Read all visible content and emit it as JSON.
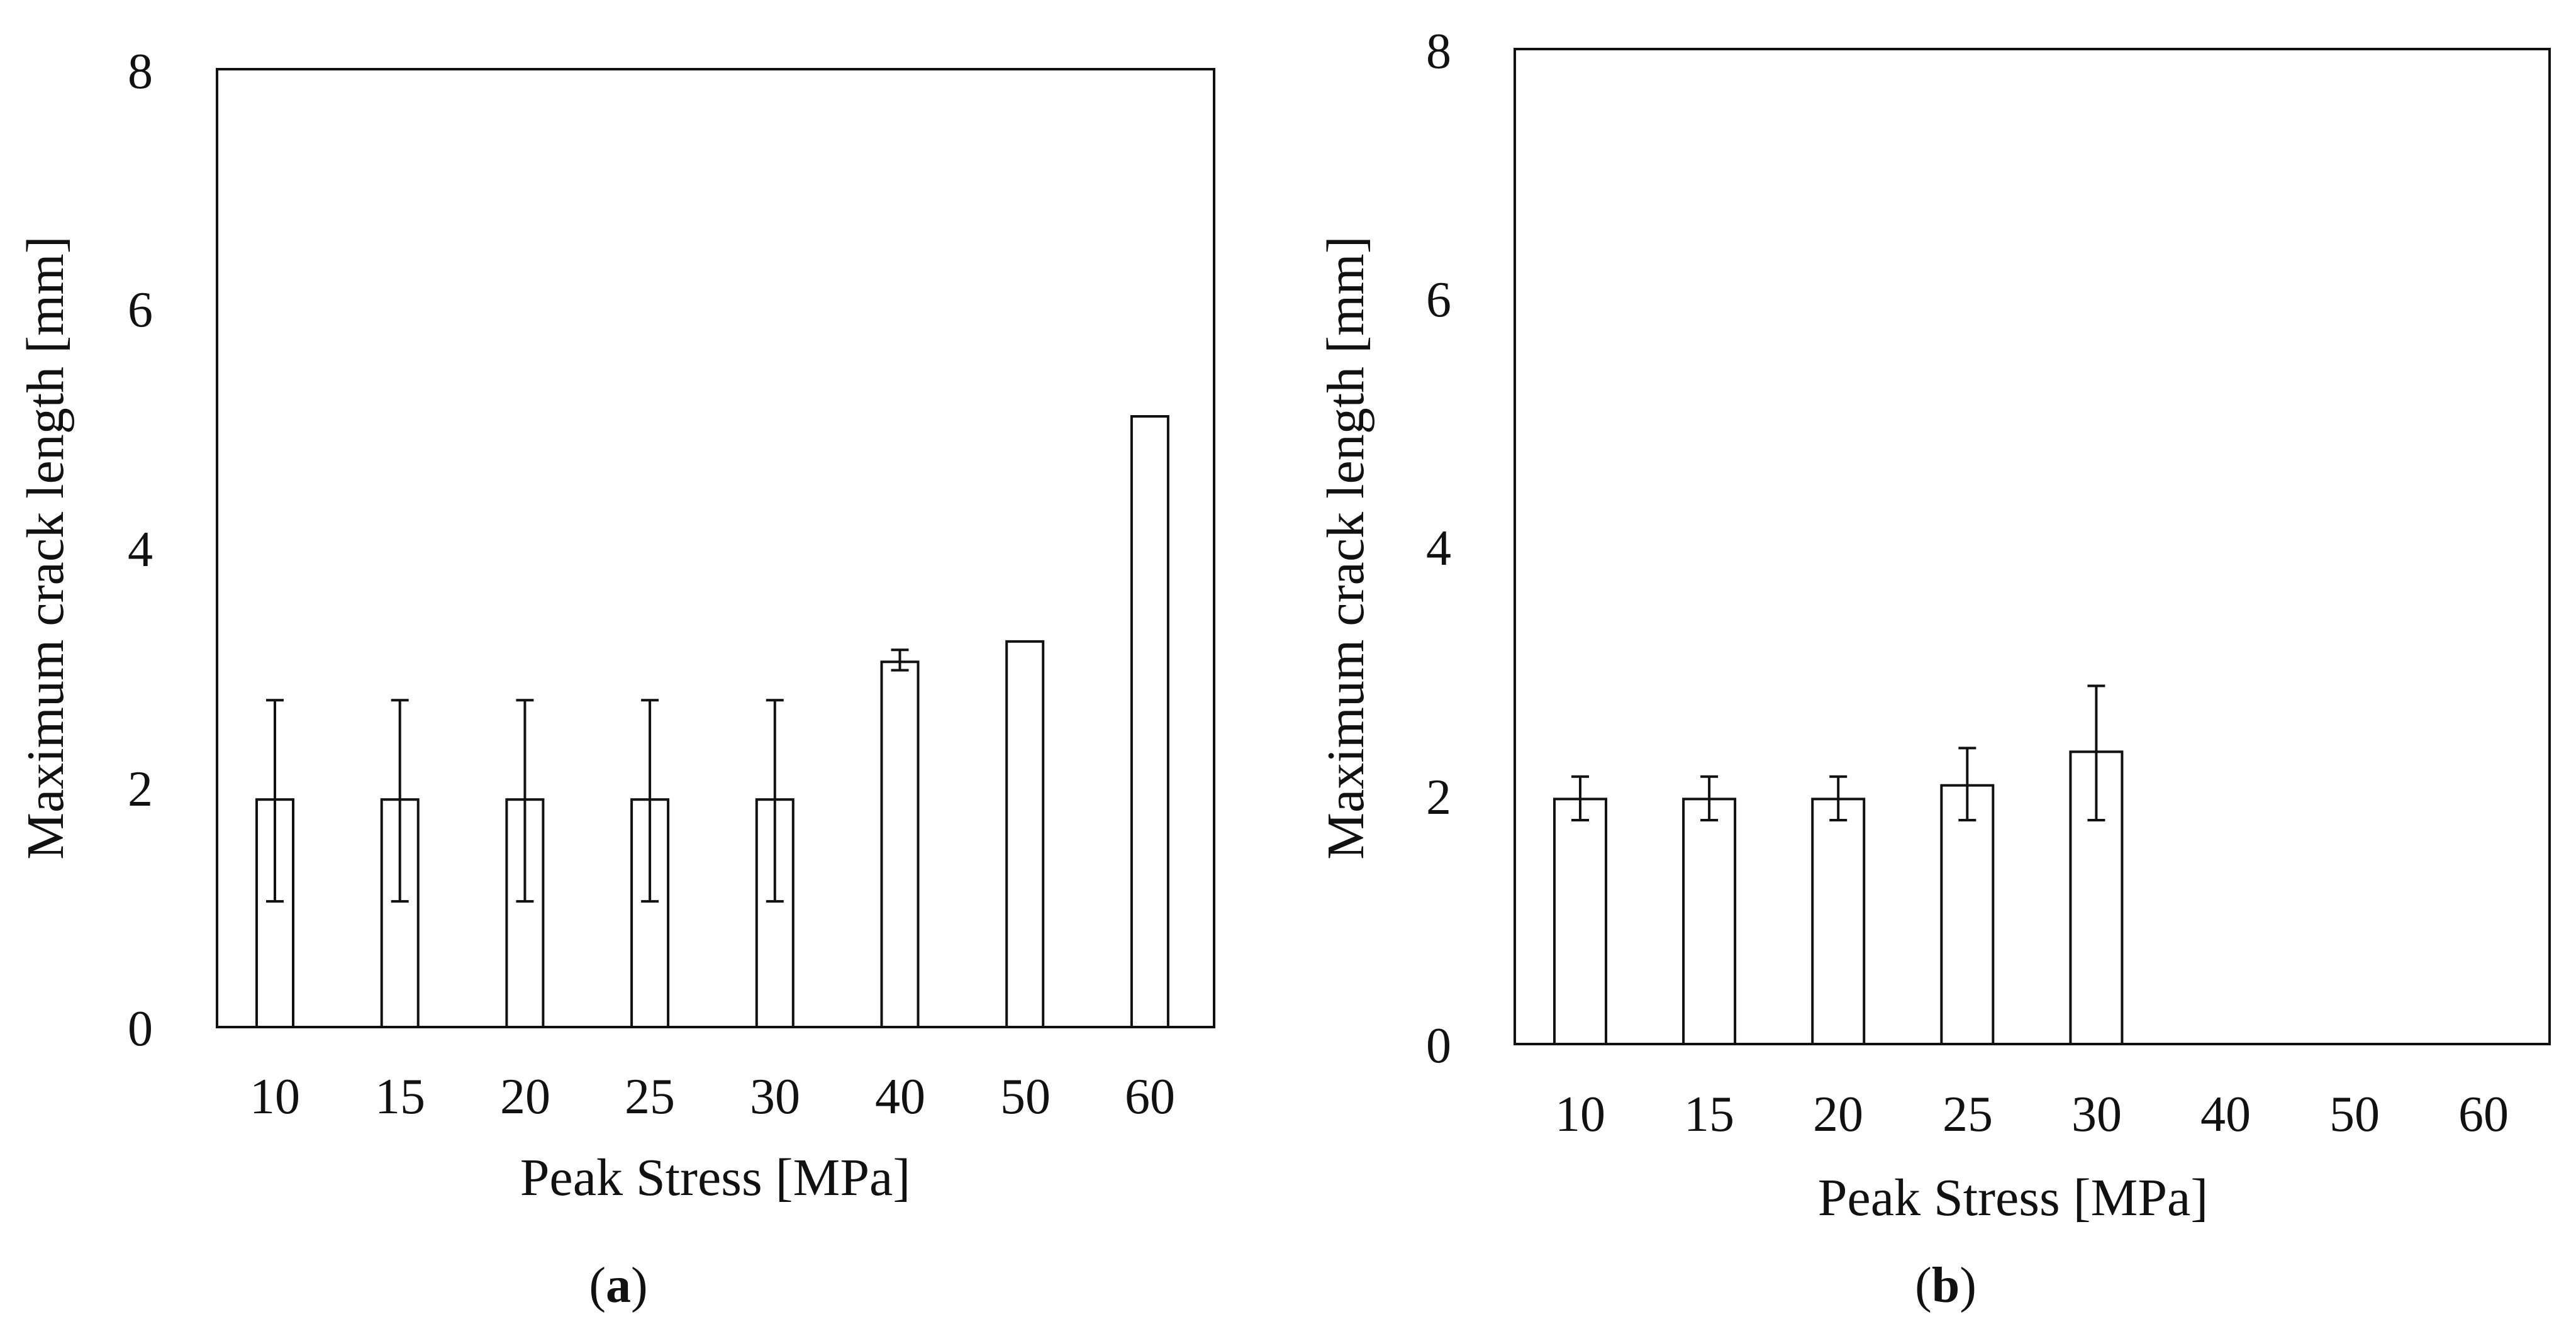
{
  "figure": {
    "colors": {
      "line": "#111111",
      "bar_fill": "#ffffff",
      "background": "#ffffff"
    }
  },
  "chart_data": [
    {
      "id": "a",
      "type": "bar",
      "panel_label": {
        "open": "(",
        "letter": "a",
        "close": ")"
      },
      "title": "",
      "xlabel": "Peak Stress [MPa]",
      "ylabel": "Maximum crack length [mm]",
      "categories": [
        "10",
        "15",
        "20",
        "25",
        "30",
        "40",
        "50",
        "60"
      ],
      "values": [
        1.9,
        1.9,
        1.9,
        1.9,
        1.9,
        3.05,
        3.22,
        5.1
      ],
      "error_low": [
        1.05,
        1.05,
        1.05,
        1.05,
        1.05,
        2.98,
        null,
        null
      ],
      "error_high": [
        2.73,
        2.73,
        2.73,
        2.73,
        2.73,
        3.15,
        null,
        null
      ],
      "ylim": [
        0,
        8
      ],
      "yticks": [
        "0",
        "2",
        "4",
        "6",
        "8"
      ],
      "grid": false
    },
    {
      "id": "b",
      "type": "bar",
      "panel_label": {
        "open": "(",
        "letter": "b",
        "close": ")"
      },
      "title": "",
      "xlabel": "Peak Stress [MPa]",
      "ylabel": "Maximum crack length [mm]",
      "categories": [
        "10",
        "15",
        "20",
        "25",
        "30",
        "40",
        "50",
        "60"
      ],
      "values": [
        1.97,
        1.97,
        1.97,
        2.08,
        2.35,
        null,
        null,
        null
      ],
      "error_low": [
        1.8,
        1.8,
        1.8,
        1.8,
        1.8,
        null,
        null,
        null
      ],
      "error_high": [
        2.15,
        2.15,
        2.15,
        2.38,
        2.88,
        null,
        null,
        null
      ],
      "ylim": [
        0,
        8
      ],
      "yticks": [
        "0",
        "2",
        "4",
        "6",
        "8"
      ],
      "grid": false
    }
  ]
}
